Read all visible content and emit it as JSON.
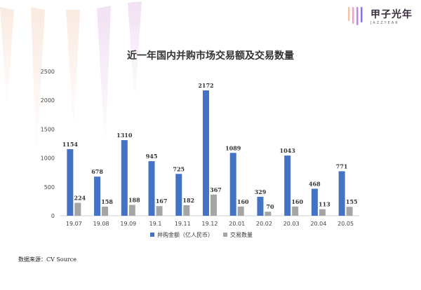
{
  "brand": {
    "name": "甲子光年",
    "sub": "JAZZYEAR",
    "colors": [
      "#f3c4a6",
      "#e9a5c8",
      "#b98ad9",
      "#8a73d8"
    ]
  },
  "source": "数据来源：CV Source",
  "chart_data": {
    "type": "bar",
    "title": "近一年国内并购市场交易额及交易数量",
    "categories": [
      "19.07",
      "19.08",
      "19.09",
      "19.1",
      "19.11",
      "19.12",
      "20.01",
      "20.02",
      "20.03",
      "20.04",
      "20.05"
    ],
    "series": [
      {
        "name": "并购金额（亿人民币）",
        "color": "#4472c4",
        "values": [
          1154,
          678,
          1310,
          945,
          725,
          2172,
          1089,
          329,
          1043,
          468,
          771
        ]
      },
      {
        "name": "交易数量",
        "color": "#a5a5a5",
        "values": [
          224,
          158,
          188,
          167,
          182,
          367,
          160,
          70,
          160,
          113,
          155
        ]
      }
    ],
    "ylim": [
      0,
      2500
    ],
    "yticks": [
      0,
      500,
      1000,
      1500,
      2000,
      2500
    ],
    "xlabel": "",
    "ylabel": "",
    "legend": "bottom"
  }
}
